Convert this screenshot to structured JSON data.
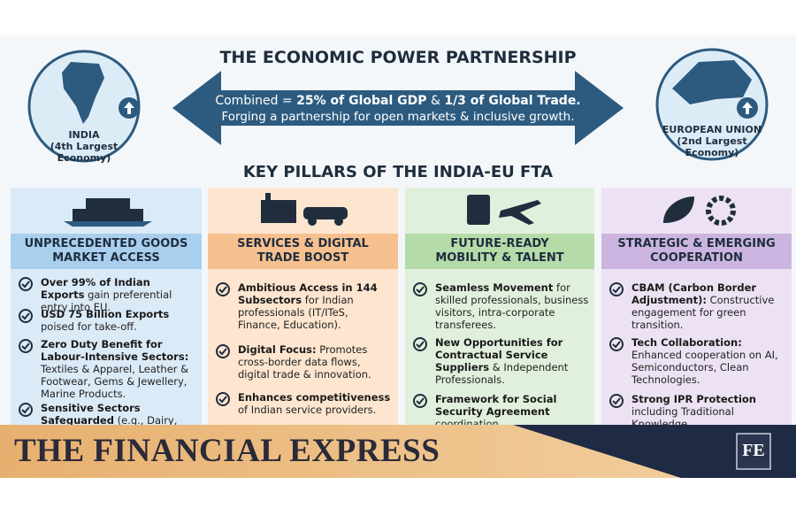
{
  "header": {
    "title": "THE ECONOMIC POWER PARTNERSHIP",
    "banner_line1": [
      "Combined = ",
      "25% of Global GDP",
      " & ",
      "1/3 of Global Trade."
    ],
    "banner_line2": "Forging a partnership for open markets & inclusive growth."
  },
  "left_badge": {
    "name": "INDIA",
    "note": [
      "(4th Largest",
      "Economy)"
    ]
  },
  "right_badge": {
    "name": "EUROPEAN UNION",
    "note": [
      "(2nd Largest",
      "Economy)"
    ]
  },
  "pillars_title": "KEY PILLARS OF THE INDIA-EU FTA",
  "columns": [
    {
      "title": [
        "UNPRECEDENTED GOODS",
        "MARKET ACCESS"
      ],
      "items": [
        {
          "lead": "Over 99% of Indian Exports",
          "rest": "gain preferential entry into EU."
        },
        {
          "lead": "USD 75 Billion Exports",
          "rest": "poised for take-off."
        },
        {
          "lead": "Zero Duty Benefit for Labour-Intensive Sectors:",
          "rest": "Textiles & Apparel, Leather & Footwear, Gems & Jewellery, Marine Products."
        },
        {
          "lead": "Sensitive Sectors Safeguarded",
          "rest": "(e.g., Dairy, Agriculture) with"
        }
      ]
    },
    {
      "title": [
        "SERVICES & DIGITAL",
        "TRADE BOOST"
      ],
      "items": [
        {
          "lead": "Ambitious Access in 144 Subsectors",
          "rest": "for Indian professionals (IT/ITeS, Finance, Education)."
        },
        {
          "lead": "Digital Focus:",
          "rest": "Promotes cross-border data flows, digital trade & innovation."
        },
        {
          "lead": "Enhances competitiveness",
          "rest": "of Indian service providers."
        }
      ]
    },
    {
      "title": [
        "FUTURE-READY",
        "MOBILITY & TALENT"
      ],
      "items": [
        {
          "lead": "Seamless Movement",
          "rest": "for skilled professionals, business visitors, intra-corporate transferees."
        },
        {
          "lead": "New Opportunities for Contractual Service Suppliers",
          "rest": "& Independent Professionals."
        },
        {
          "lead": "Framework for Social Security Agreement",
          "rest": "coordination"
        }
      ]
    },
    {
      "title": [
        "STRATEGIC & EMERGING",
        "COOPERATION"
      ],
      "items": [
        {
          "lead": "CBAM (Carbon Border Adjustment):",
          "rest": "Constructive engagement for green transition."
        },
        {
          "lead": "Tech Collaboration:",
          "rest": "Enhanced cooperation on AI, Semiconductors, Clean Technologies."
        },
        {
          "lead": "Strong IPR Protection",
          "rest": "including Traditional Knowledge"
        }
      ]
    }
  ],
  "footer": {
    "brand": "THE FINANCIAL EXPRESS",
    "logo": "FE"
  }
}
